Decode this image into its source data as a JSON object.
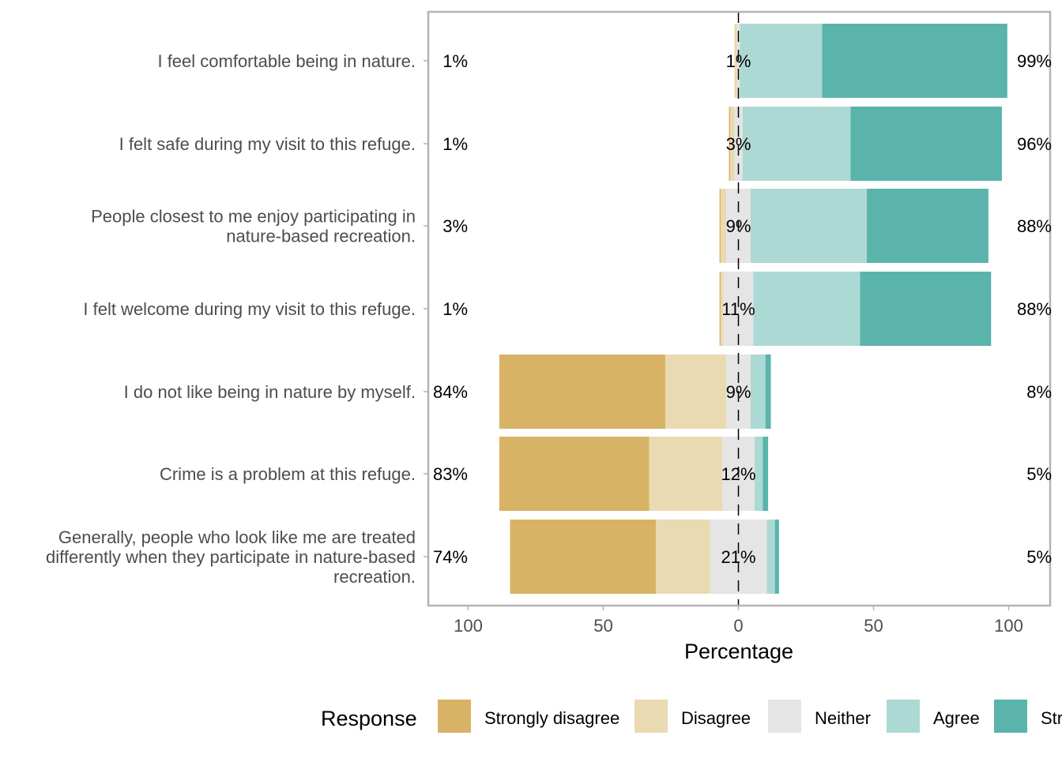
{
  "chart_data": {
    "type": "bar",
    "orientation": "horizontal-diverging",
    "xlabel": "Percentage",
    "xlim": [
      -100,
      100
    ],
    "xticks": [
      {
        "value": -100,
        "label": "100"
      },
      {
        "value": -50,
        "label": "50"
      },
      {
        "value": 0,
        "label": "0"
      },
      {
        "value": 50,
        "label": "50"
      },
      {
        "value": 100,
        "label": "100"
      }
    ],
    "grid": true,
    "legend": {
      "title": "Response",
      "position": "bottom",
      "items": [
        {
          "name": "Strongly disagree",
          "color": "#D8B365"
        },
        {
          "name": "Disagree",
          "color": "#EADAB2"
        },
        {
          "name": "Neither",
          "color": "#E5E5E5"
        },
        {
          "name": "Agree",
          "color": "#ADD9D5"
        },
        {
          "name": "Strongly agree",
          "color": "#5AB4AC"
        }
      ]
    },
    "categories": [
      "I feel comfortable being in nature.",
      "I felt safe during my visit to this refuge.",
      "People closest to me enjoy participating in nature-based recreation.",
      "I felt welcome during my visit to this refuge.",
      "I do not like being in nature by myself.",
      "Crime is a problem at this refuge.",
      "Generally, people who look like me are treated differently when they participate in nature-based recreation."
    ],
    "category_lines": [
      [
        "I feel comfortable being in nature."
      ],
      [
        "I felt safe during my visit to this refuge."
      ],
      [
        "People closest to me enjoy participating in",
        "nature-based recreation."
      ],
      [
        "I felt welcome during my visit to this refuge."
      ],
      [
        "I do not like being in nature by myself."
      ],
      [
        "Crime is a problem at this refuge."
      ],
      [
        "Generally, people who look like me are treated",
        "differently when they participate in nature-based",
        "recreation."
      ]
    ],
    "series": [
      {
        "name": "Strongly disagree",
        "values": [
          0.0,
          0.5,
          0.5,
          0.5,
          61.5,
          55.5,
          54.0
        ]
      },
      {
        "name": "Disagree",
        "values": [
          1.0,
          1.5,
          2.0,
          1.0,
          22.5,
          27.0,
          20.0
        ]
      },
      {
        "name": "Neither",
        "values": [
          1.0,
          3.0,
          9.0,
          11.0,
          9.0,
          12.0,
          21.0
        ]
      },
      {
        "name": "Agree",
        "values": [
          30.5,
          40.0,
          43.0,
          39.5,
          5.5,
          3.0,
          3.0
        ]
      },
      {
        "name": "Strongly agree",
        "values": [
          68.5,
          56.0,
          45.0,
          48.5,
          2.0,
          2.0,
          1.5
        ]
      }
    ],
    "labels_low": [
      "1%",
      "1%",
      "3%",
      "1%",
      "84%",
      "83%",
      "74%"
    ],
    "labels_neutral": [
      "1%",
      "3%",
      "9%",
      "11%",
      "9%",
      "12%",
      "21%"
    ],
    "labels_high": [
      "99%",
      "96%",
      "88%",
      "88%",
      "8%",
      "5%",
      "5%"
    ]
  }
}
